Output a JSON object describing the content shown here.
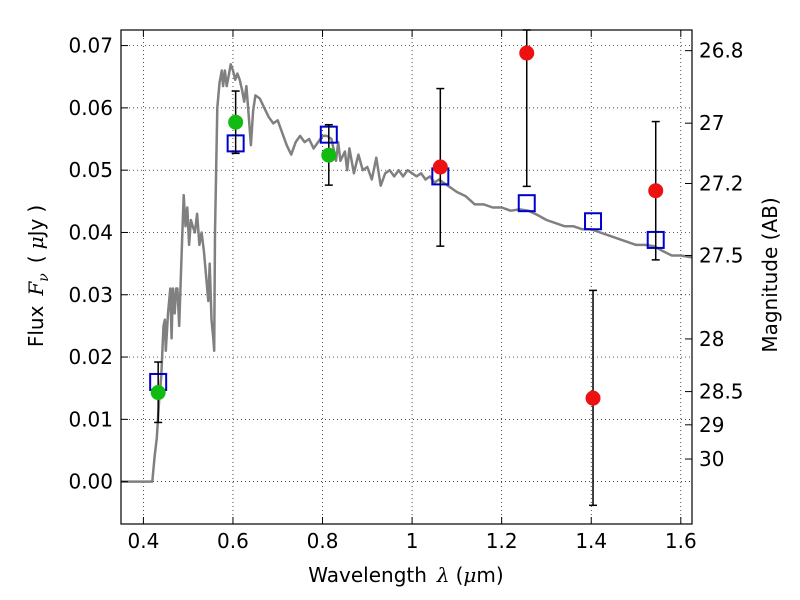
{
  "chart_data": {
    "type": "scatter",
    "xlabel_parts": [
      "Wavelength",
      "λ",
      "(",
      "μ",
      "m)"
    ],
    "ylabel_parts": [
      "Flux",
      "F",
      "ν",
      "(",
      "μ",
      "Jy",
      ")"
    ],
    "y2label": "Magnitude (AB)",
    "xlim": [
      0.35,
      1.625
    ],
    "ylim": [
      -0.0068,
      0.0725
    ],
    "grid": true,
    "x_ticks": [
      {
        "value": 0.4,
        "label": "0.4"
      },
      {
        "value": 0.6,
        "label": "0.6"
      },
      {
        "value": 0.8,
        "label": "0.8"
      },
      {
        "value": 1.0,
        "label": "1"
      },
      {
        "value": 1.2,
        "label": "1.2"
      },
      {
        "value": 1.4,
        "label": "1.4"
      },
      {
        "value": 1.6,
        "label": "1.6"
      }
    ],
    "y_ticks": [
      {
        "value": 0.0,
        "label": "0.00"
      },
      {
        "value": 0.01,
        "label": "0.01"
      },
      {
        "value": 0.02,
        "label": "0.02"
      },
      {
        "value": 0.03,
        "label": "0.03"
      },
      {
        "value": 0.04,
        "label": "0.04"
      },
      {
        "value": 0.05,
        "label": "0.05"
      },
      {
        "value": 0.06,
        "label": "0.06"
      },
      {
        "value": 0.07,
        "label": "0.07"
      }
    ],
    "magnitude_ticks": [
      {
        "value": 26.8,
        "label": "26.8"
      },
      {
        "value": 27.0,
        "label": "27"
      },
      {
        "value": 27.2,
        "label": "27.2"
      },
      {
        "value": 27.5,
        "label": "27.5"
      },
      {
        "value": 28.0,
        "label": "28"
      },
      {
        "value": 28.5,
        "label": "28.5"
      },
      {
        "value": 29.0,
        "label": "29"
      },
      {
        "value": 30.0,
        "label": "30"
      }
    ],
    "series": [
      {
        "kind": "line",
        "color": "#808080",
        "points": [
          [
            0.35,
            0.0
          ],
          [
            0.41,
            0.0
          ],
          [
            0.415,
            0.0
          ],
          [
            0.42,
            0.0
          ],
          [
            0.425,
            0.004
          ],
          [
            0.43,
            0.007
          ],
          [
            0.435,
            0.013
          ],
          [
            0.44,
            0.017
          ],
          [
            0.445,
            0.025
          ],
          [
            0.448,
            0.026
          ],
          [
            0.45,
            0.021
          ],
          [
            0.455,
            0.027
          ],
          [
            0.46,
            0.031
          ],
          [
            0.463,
            0.023
          ],
          [
            0.466,
            0.031
          ],
          [
            0.47,
            0.027
          ],
          [
            0.473,
            0.031
          ],
          [
            0.476,
            0.031
          ],
          [
            0.48,
            0.025
          ],
          [
            0.485,
            0.036
          ],
          [
            0.49,
            0.046
          ],
          [
            0.494,
            0.041
          ],
          [
            0.498,
            0.044
          ],
          [
            0.502,
            0.038
          ],
          [
            0.506,
            0.042
          ],
          [
            0.51,
            0.041
          ],
          [
            0.515,
            0.04
          ],
          [
            0.52,
            0.043
          ],
          [
            0.525,
            0.038
          ],
          [
            0.53,
            0.04
          ],
          [
            0.535,
            0.037
          ],
          [
            0.54,
            0.033
          ],
          [
            0.545,
            0.029
          ],
          [
            0.548,
            0.035
          ],
          [
            0.552,
            0.026
          ],
          [
            0.556,
            0.023
          ],
          [
            0.558,
            0.021
          ],
          [
            0.56,
            0.04
          ],
          [
            0.565,
            0.06
          ],
          [
            0.57,
            0.064
          ],
          [
            0.575,
            0.066
          ],
          [
            0.578,
            0.0635
          ],
          [
            0.582,
            0.066
          ],
          [
            0.586,
            0.0635
          ],
          [
            0.59,
            0.065
          ],
          [
            0.595,
            0.067
          ],
          [
            0.6,
            0.066
          ],
          [
            0.605,
            0.0645
          ],
          [
            0.61,
            0.0655
          ],
          [
            0.615,
            0.0645
          ],
          [
            0.62,
            0.063
          ],
          [
            0.625,
            0.061
          ],
          [
            0.63,
            0.0635
          ],
          [
            0.635,
            0.059
          ],
          [
            0.64,
            0.054
          ],
          [
            0.645,
            0.0595
          ],
          [
            0.65,
            0.062
          ],
          [
            0.66,
            0.0615
          ],
          [
            0.67,
            0.06
          ],
          [
            0.68,
            0.0585
          ],
          [
            0.69,
            0.0575
          ],
          [
            0.7,
            0.058
          ],
          [
            0.71,
            0.056
          ],
          [
            0.72,
            0.054
          ],
          [
            0.73,
            0.0525
          ],
          [
            0.74,
            0.0545
          ],
          [
            0.75,
            0.0555
          ],
          [
            0.76,
            0.0545
          ],
          [
            0.77,
            0.055
          ],
          [
            0.78,
            0.0535
          ],
          [
            0.79,
            0.0545
          ],
          [
            0.8,
            0.0555
          ],
          [
            0.81,
            0.0555
          ],
          [
            0.82,
            0.055
          ],
          [
            0.83,
            0.0515
          ],
          [
            0.835,
            0.0545
          ],
          [
            0.84,
            0.0515
          ],
          [
            0.85,
            0.053
          ],
          [
            0.855,
            0.05
          ],
          [
            0.86,
            0.0535
          ],
          [
            0.87,
            0.0495
          ],
          [
            0.88,
            0.0525
          ],
          [
            0.89,
            0.05
          ],
          [
            0.9,
            0.0505
          ],
          [
            0.91,
            0.0485
          ],
          [
            0.92,
            0.052
          ],
          [
            0.93,
            0.0475
          ],
          [
            0.94,
            0.0495
          ],
          [
            0.95,
            0.05
          ],
          [
            0.96,
            0.049
          ],
          [
            0.97,
            0.05
          ],
          [
            0.98,
            0.049
          ],
          [
            0.99,
            0.05
          ],
          [
            1.0,
            0.0495
          ],
          [
            1.01,
            0.049
          ],
          [
            1.02,
            0.0495
          ],
          [
            1.03,
            0.0485
          ],
          [
            1.04,
            0.049
          ],
          [
            1.05,
            0.048
          ],
          [
            1.06,
            0.0485
          ],
          [
            1.07,
            0.048
          ],
          [
            1.08,
            0.0475
          ],
          [
            1.09,
            0.047
          ],
          [
            1.1,
            0.0465
          ],
          [
            1.12,
            0.0458
          ],
          [
            1.14,
            0.0445
          ],
          [
            1.16,
            0.0445
          ],
          [
            1.18,
            0.044
          ],
          [
            1.2,
            0.044
          ],
          [
            1.22,
            0.0435
          ],
          [
            1.24,
            0.0437
          ],
          [
            1.26,
            0.0435
          ],
          [
            1.28,
            0.0428
          ],
          [
            1.3,
            0.042
          ],
          [
            1.32,
            0.0415
          ],
          [
            1.34,
            0.041
          ],
          [
            1.36,
            0.041
          ],
          [
            1.38,
            0.0405
          ],
          [
            1.4,
            0.0405
          ],
          [
            1.42,
            0.04
          ],
          [
            1.44,
            0.0395
          ],
          [
            1.46,
            0.039
          ],
          [
            1.48,
            0.0385
          ],
          [
            1.5,
            0.038
          ],
          [
            1.52,
            0.038
          ],
          [
            1.54,
            0.0378
          ],
          [
            1.56,
            0.037
          ],
          [
            1.58,
            0.0363
          ],
          [
            1.6,
            0.0363
          ],
          [
            1.625,
            0.036
          ]
        ]
      },
      {
        "kind": "open-square",
        "color": "#0000cc",
        "x": [
          0.433,
          0.606,
          0.814,
          1.063,
          1.256,
          1.404,
          1.544
        ],
        "y": [
          0.016,
          0.0543,
          0.0557,
          0.049,
          0.0447,
          0.0418,
          0.0388
        ]
      },
      {
        "kind": "filled-circle",
        "color": "#11bb11",
        "x": [
          0.433,
          0.606,
          0.814
        ],
        "y": [
          0.0143,
          0.0577,
          0.0524
        ],
        "yerr_low": [
          0.0095,
          0.0527,
          0.0476
        ],
        "yerr_high": [
          0.0192,
          0.0627,
          0.0573
        ]
      },
      {
        "kind": "filled-circle",
        "color": "#ee1111",
        "x": [
          1.063,
          1.256,
          1.404,
          1.544
        ],
        "y": [
          0.0505,
          0.0688,
          0.0134,
          0.0467
        ],
        "yerr_low": [
          0.0378,
          0.0474,
          -0.0038,
          0.0356
        ],
        "yerr_high": [
          0.0631,
          0.0725,
          0.0307,
          0.0578
        ]
      }
    ]
  }
}
